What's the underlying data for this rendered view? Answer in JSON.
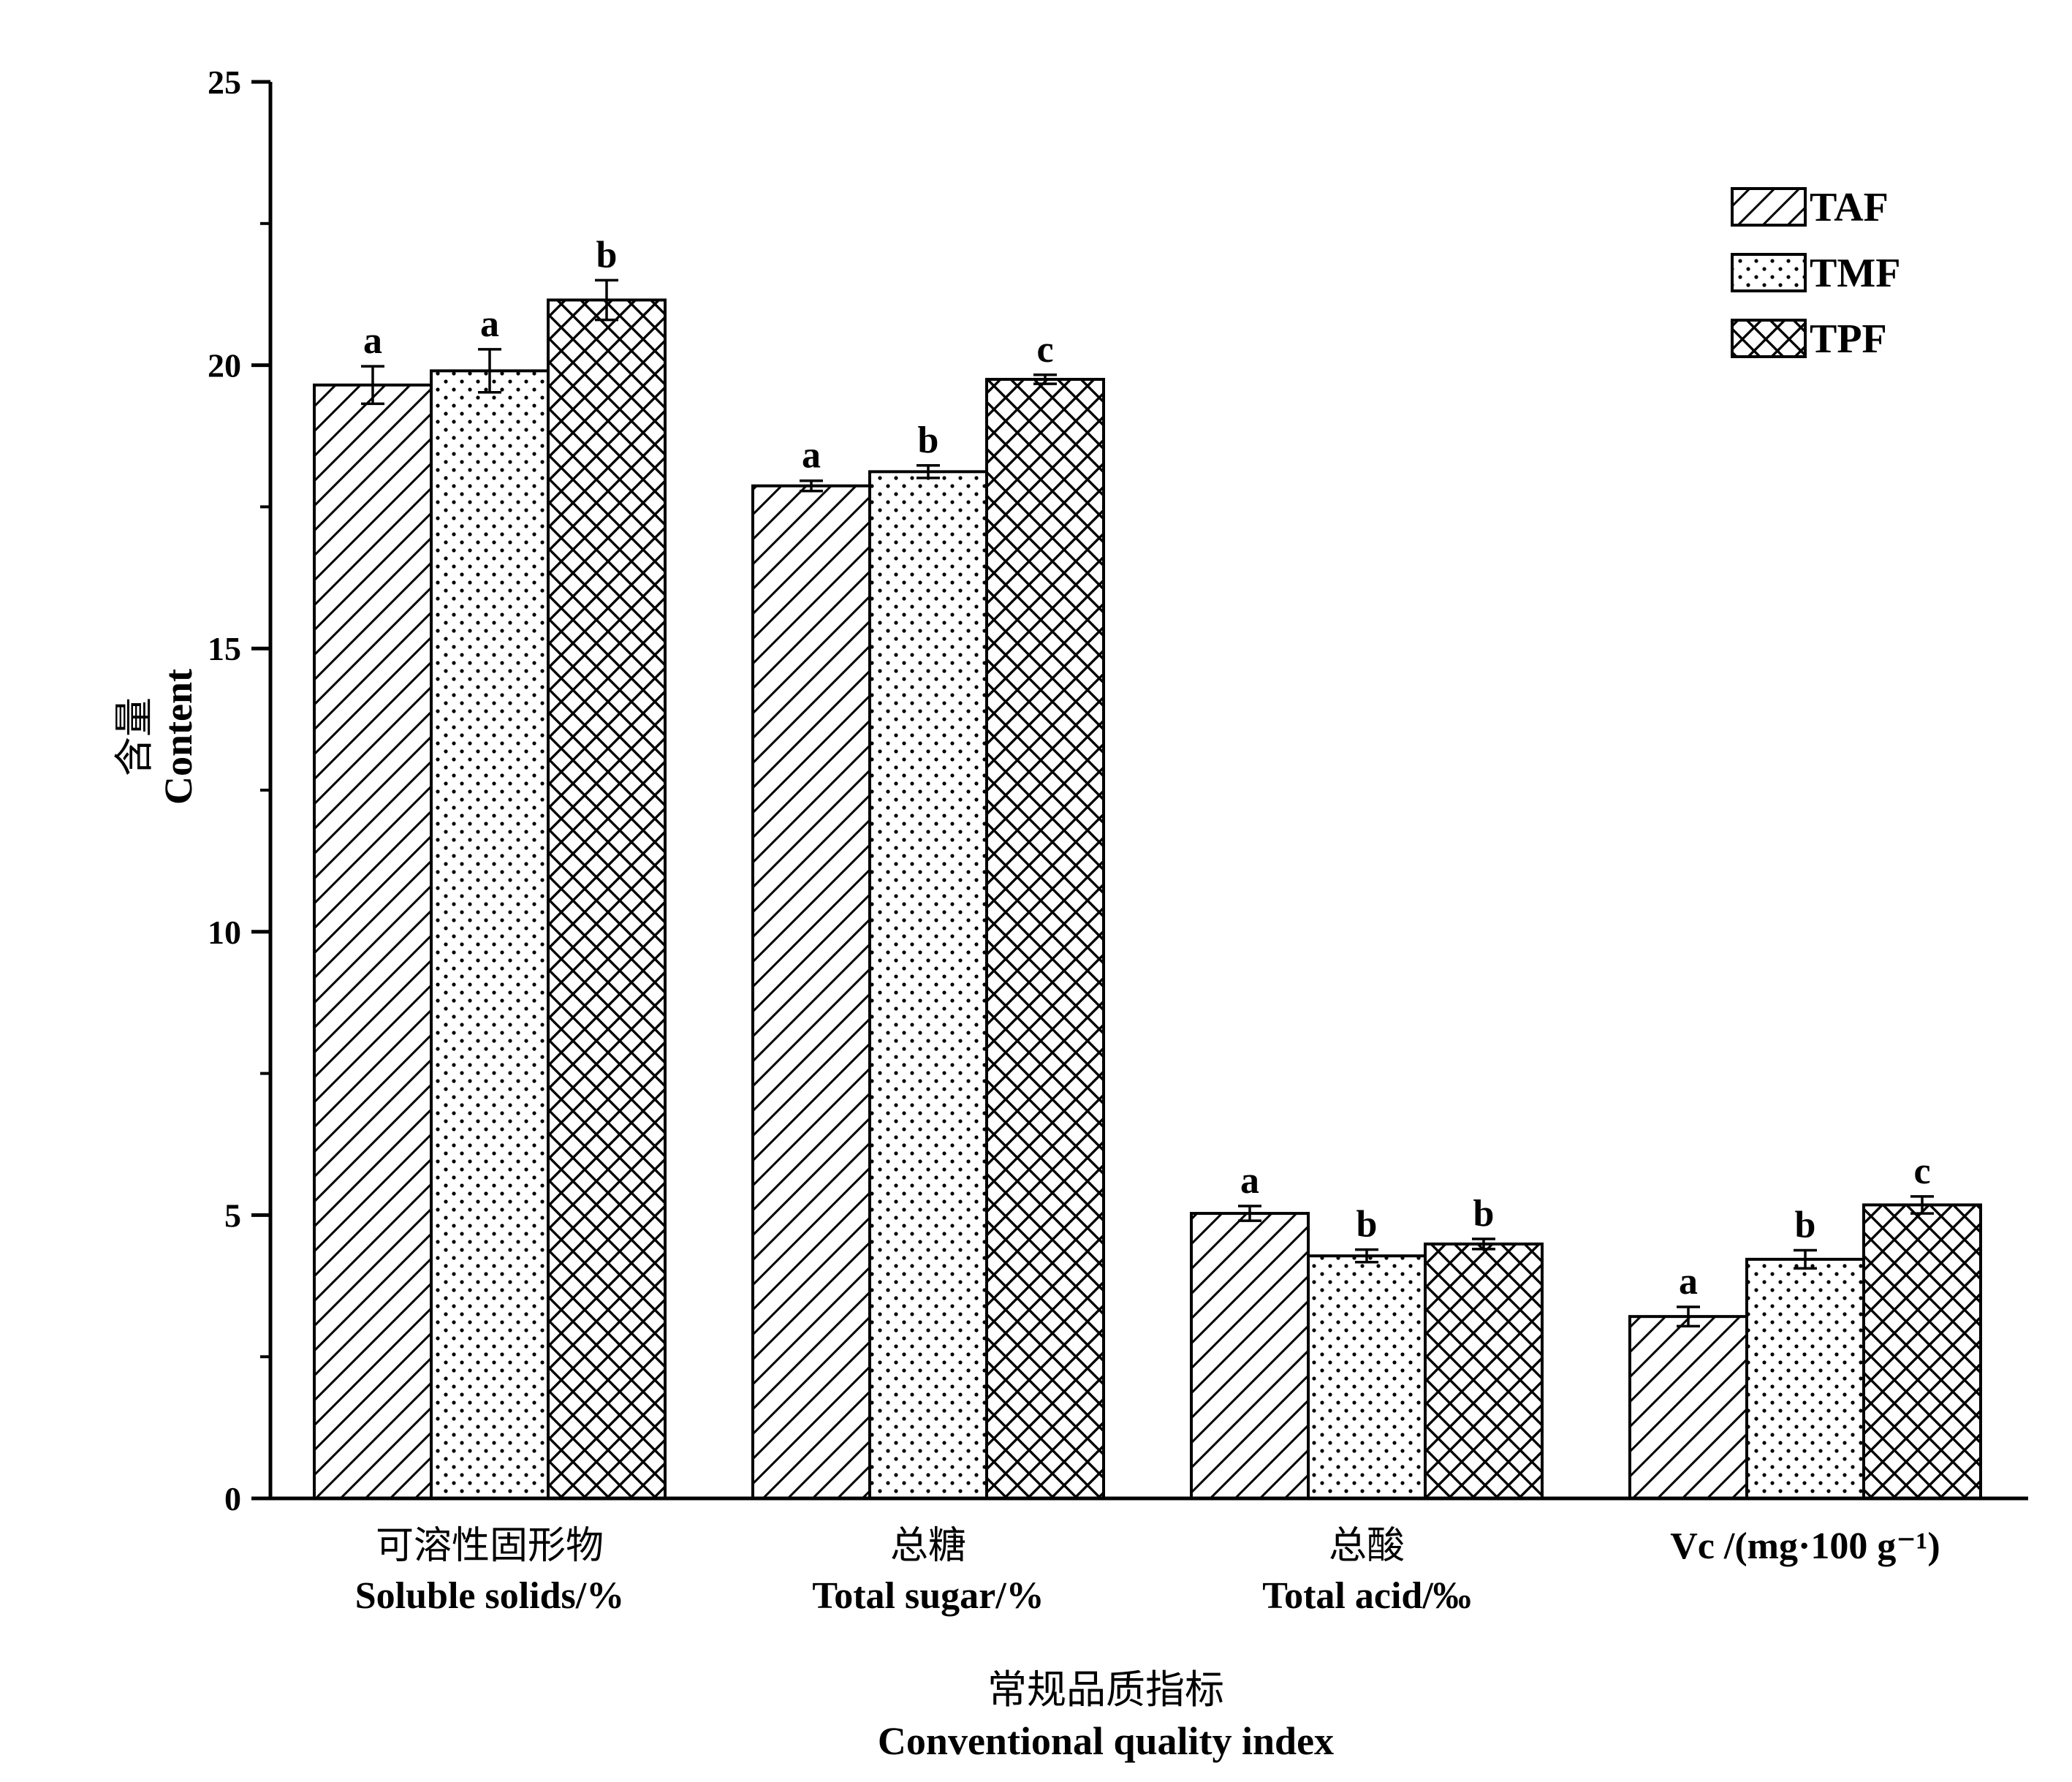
{
  "chart_data": {
    "type": "bar",
    "ylabel": [
      "含量",
      "Content"
    ],
    "xlabel": [
      "常规品质指标",
      "Conventional quality index"
    ],
    "ylim": [
      0,
      25
    ],
    "yticks": [
      0,
      5,
      10,
      15,
      20,
      25
    ],
    "minor_ticks": 2.5,
    "grid": false,
    "legend_position": "top-right",
    "categories": [
      {
        "zh": "可溶性固形物",
        "en": "Soluble solids/%"
      },
      {
        "zh": "总糖",
        "en": "Total sugar/%"
      },
      {
        "zh": "总酸",
        "en": "Total acid/‰"
      },
      {
        "zh": "",
        "en": "Vc /(mg·100 g⁻¹)"
      }
    ],
    "series": [
      {
        "name": "TAF",
        "pattern": "diagonal-hatch",
        "values": [
          19.65,
          17.87,
          5.03,
          3.21
        ],
        "errors": [
          0.33,
          0.09,
          0.13,
          0.17
        ],
        "labels": [
          "a",
          "a",
          "a",
          "a"
        ]
      },
      {
        "name": "TMF",
        "pattern": "dots",
        "values": [
          19.9,
          18.12,
          4.28,
          4.22
        ],
        "errors": [
          0.38,
          0.11,
          0.11,
          0.16
        ],
        "labels": [
          "a",
          "b",
          "b",
          "b"
        ]
      },
      {
        "name": "TPF",
        "pattern": "crosshatch",
        "values": [
          21.15,
          19.75,
          4.49,
          5.18
        ],
        "errors": [
          0.35,
          0.08,
          0.09,
          0.15
        ],
        "labels": [
          "b",
          "c",
          "b",
          "c"
        ]
      }
    ]
  }
}
